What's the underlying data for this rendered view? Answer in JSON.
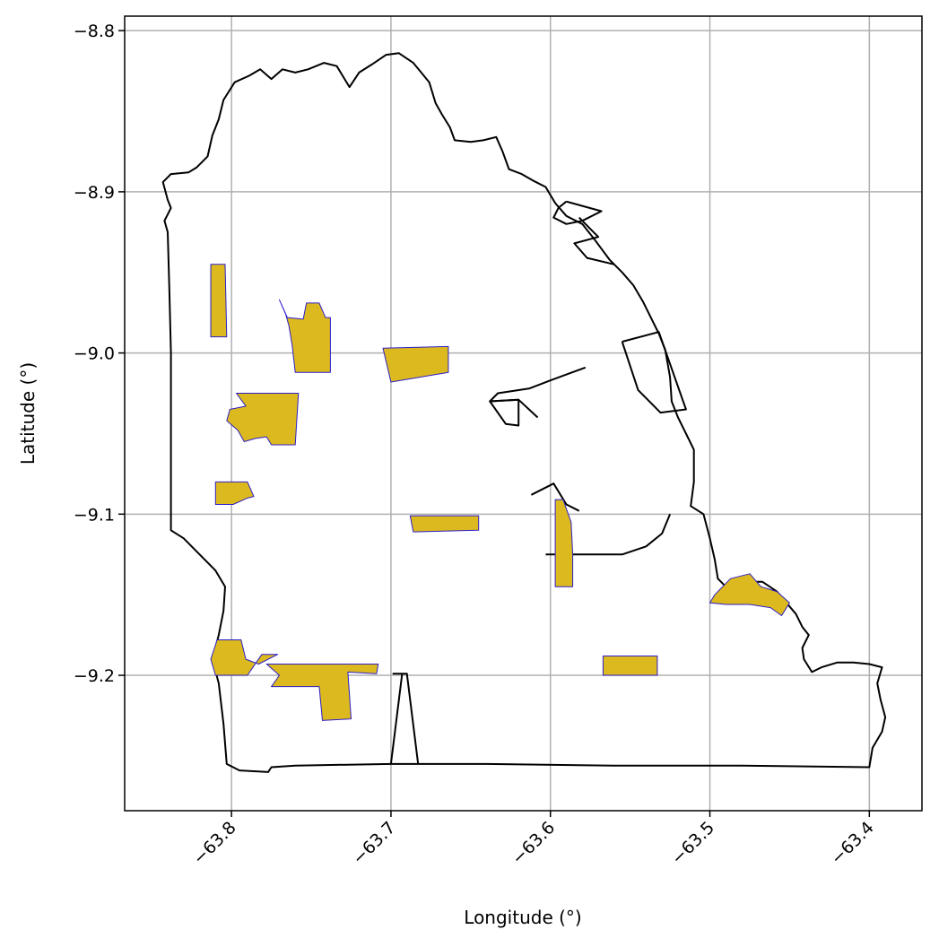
{
  "axes": {
    "xlabel": "Longitude (°)",
    "ylabel": "Latitude (°)",
    "xlim": [
      -63.867,
      -63.367
    ],
    "ylim": [
      -9.284,
      -8.791
    ],
    "x_ticks": [
      {
        "value": -63.8,
        "label": "−63.8"
      },
      {
        "value": -63.7,
        "label": "−63.7"
      },
      {
        "value": -63.6,
        "label": "−63.6"
      },
      {
        "value": -63.5,
        "label": "−63.5"
      },
      {
        "value": -63.4,
        "label": "−63.4"
      }
    ],
    "y_ticks": [
      {
        "value": -8.8,
        "label": "−8.8"
      },
      {
        "value": -8.9,
        "label": "−8.9"
      },
      {
        "value": -9.0,
        "label": "−9.0"
      },
      {
        "value": -9.1,
        "label": "−9.1"
      },
      {
        "value": -9.2,
        "label": "−9.2"
      }
    ],
    "grid": true
  },
  "colors": {
    "boundary": "#000000",
    "area_fill": "#ddb920",
    "area_edge": "#2b1fc8",
    "grid": "#b0b0b0"
  },
  "map_data": {
    "boundary_outline": [
      [
        -63.843,
        -8.894
      ],
      [
        -63.838,
        -8.889
      ],
      [
        -63.827,
        -8.888
      ],
      [
        -63.822,
        -8.885
      ],
      [
        -63.815,
        -8.878
      ],
      [
        -63.812,
        -8.865
      ],
      [
        -63.808,
        -8.855
      ],
      [
        -63.805,
        -8.843
      ],
      [
        -63.798,
        -8.832
      ],
      [
        -63.789,
        -8.828
      ],
      [
        -63.782,
        -8.824
      ],
      [
        -63.775,
        -8.83
      ],
      [
        -63.768,
        -8.824
      ],
      [
        -63.76,
        -8.826
      ],
      [
        -63.752,
        -8.824
      ],
      [
        -63.742,
        -8.82
      ],
      [
        -63.734,
        -8.822
      ],
      [
        -63.726,
        -8.835
      ],
      [
        -63.72,
        -8.826
      ],
      [
        -63.712,
        -8.821
      ],
      [
        -63.703,
        -8.815
      ],
      [
        -63.695,
        -8.814
      ],
      [
        -63.686,
        -8.82
      ],
      [
        -63.681,
        -8.826
      ],
      [
        -63.676,
        -8.832
      ],
      [
        -63.672,
        -8.845
      ],
      [
        -63.668,
        -8.852
      ],
      [
        -63.663,
        -8.86
      ],
      [
        -63.66,
        -8.868
      ],
      [
        -63.65,
        -8.869
      ],
      [
        -63.642,
        -8.868
      ],
      [
        -63.634,
        -8.866
      ],
      [
        -63.63,
        -8.875
      ],
      [
        -63.626,
        -8.886
      ],
      [
        -63.618,
        -8.889
      ],
      [
        -63.611,
        -8.893
      ],
      [
        -63.603,
        -8.897
      ],
      [
        -63.597,
        -8.907
      ],
      [
        -63.59,
        -8.915
      ],
      [
        -63.58,
        -8.92
      ],
      [
        -63.572,
        -8.93
      ],
      [
        -63.563,
        -8.942
      ],
      [
        -63.555,
        -8.95
      ],
      [
        -63.548,
        -8.958
      ],
      [
        -63.542,
        -8.968
      ],
      [
        -63.537,
        -8.978
      ],
      [
        -63.532,
        -8.988
      ],
      [
        -63.528,
        -8.998
      ],
      [
        -63.525,
        -9.015
      ],
      [
        -63.524,
        -9.03
      ],
      [
        -63.52,
        -9.04
      ],
      [
        -63.515,
        -9.05
      ],
      [
        -63.51,
        -9.06
      ],
      [
        -63.51,
        -9.08
      ],
      [
        -63.512,
        -9.095
      ],
      [
        -63.504,
        -9.1
      ],
      [
        -63.5,
        -9.115
      ],
      [
        -63.497,
        -9.128
      ],
      [
        -63.495,
        -9.14
      ],
      [
        -63.49,
        -9.145
      ],
      [
        -63.48,
        -9.142
      ],
      [
        -63.467,
        -9.142
      ],
      [
        -63.458,
        -9.148
      ],
      [
        -63.452,
        -9.155
      ],
      [
        -63.446,
        -9.162
      ],
      [
        -63.442,
        -9.17
      ],
      [
        -63.438,
        -9.175
      ],
      [
        -63.442,
        -9.183
      ],
      [
        -63.441,
        -9.19
      ],
      [
        -63.436,
        -9.198
      ],
      [
        -63.43,
        -9.195
      ],
      [
        -63.42,
        -9.192
      ],
      [
        -63.41,
        -9.192
      ],
      [
        -63.4,
        -9.193
      ],
      [
        -63.392,
        -9.195
      ],
      [
        -63.395,
        -9.205
      ],
      [
        -63.393,
        -9.215
      ],
      [
        -63.39,
        -9.226
      ],
      [
        -63.392,
        -9.235
      ],
      [
        -63.398,
        -9.245
      ],
      [
        -63.4,
        -9.257
      ],
      [
        -63.48,
        -9.256
      ],
      [
        -63.56,
        -9.256
      ],
      [
        -63.64,
        -9.255
      ],
      [
        -63.7,
        -9.255
      ],
      [
        -63.76,
        -9.256
      ],
      [
        -63.775,
        -9.257
      ],
      [
        -63.777,
        -9.26
      ],
      [
        -63.795,
        -9.259
      ],
      [
        -63.803,
        -9.255
      ],
      [
        -63.805,
        -9.23
      ],
      [
        -63.808,
        -9.205
      ],
      [
        -63.812,
        -9.19
      ],
      [
        -63.808,
        -9.175
      ],
      [
        -63.805,
        -9.16
      ],
      [
        -63.804,
        -9.145
      ],
      [
        -63.81,
        -9.135
      ],
      [
        -63.82,
        -9.125
      ],
      [
        -63.83,
        -9.115
      ],
      [
        -63.838,
        -9.11
      ],
      [
        -63.838,
        -9.095
      ],
      [
        -63.838,
        -9.075
      ],
      [
        -63.838,
        -9.04
      ],
      [
        -63.838,
        -9.0
      ],
      [
        -63.839,
        -8.96
      ],
      [
        -63.84,
        -8.925
      ],
      [
        -63.842,
        -8.918
      ],
      [
        -63.838,
        -8.91
      ],
      [
        -63.84,
        -8.905
      ],
      [
        -63.843,
        -8.894
      ]
    ],
    "inner_outlines": [
      [
        [
          -63.59,
          -8.906
        ],
        [
          -63.568,
          -8.912
        ],
        [
          -63.58,
          -8.918
        ],
        [
          -63.59,
          -8.92
        ],
        [
          -63.598,
          -8.916
        ],
        [
          -63.595,
          -8.91
        ],
        [
          -63.59,
          -8.906
        ]
      ],
      [
        [
          -63.582,
          -8.916
        ],
        [
          -63.57,
          -8.928
        ],
        [
          -63.585,
          -8.932
        ],
        [
          -63.577,
          -8.941
        ],
        [
          -63.56,
          -8.945
        ]
      ],
      [
        [
          -63.555,
          -8.993
        ],
        [
          -63.532,
          -8.987
        ],
        [
          -63.515,
          -9.035
        ],
        [
          -63.531,
          -9.037
        ],
        [
          -63.545,
          -9.023
        ],
        [
          -63.555,
          -8.993
        ]
      ],
      [
        [
          -63.578,
          -9.009
        ],
        [
          -63.6,
          -9.017
        ],
        [
          -63.613,
          -9.022
        ],
        [
          -63.633,
          -9.025
        ],
        [
          -63.638,
          -9.03
        ],
        [
          -63.62,
          -9.029
        ],
        [
          -63.608,
          -9.04
        ]
      ],
      [
        [
          -63.638,
          -9.03
        ],
        [
          -63.628,
          -9.044
        ],
        [
          -63.62,
          -9.045
        ],
        [
          -63.62,
          -9.029
        ],
        [
          -63.638,
          -9.03
        ]
      ],
      [
        [
          -63.612,
          -9.088
        ],
        [
          -63.598,
          -9.081
        ],
        [
          -63.59,
          -9.094
        ],
        [
          -63.582,
          -9.098
        ]
      ],
      [
        [
          -63.603,
          -9.125
        ],
        [
          -63.585,
          -9.125
        ],
        [
          -63.555,
          -9.125
        ],
        [
          -63.54,
          -9.12
        ],
        [
          -63.53,
          -9.112
        ],
        [
          -63.525,
          -9.1
        ]
      ],
      [
        [
          -63.699,
          -9.199
        ],
        [
          -63.69,
          -9.199
        ],
        [
          -63.683,
          -9.255
        ]
      ],
      [
        [
          -63.693,
          -9.199
        ],
        [
          -63.7,
          -9.255
        ]
      ]
    ],
    "highlighted_areas": [
      [
        [
          -63.813,
          -8.945
        ],
        [
          -63.804,
          -8.945
        ],
        [
          -63.803,
          -8.99
        ],
        [
          -63.813,
          -8.99
        ],
        [
          -63.813,
          -8.945
        ]
      ],
      [
        [
          -63.77,
          -8.967
        ],
        [
          -63.766,
          -8.976
        ],
        [
          -63.764,
          -8.983
        ],
        [
          -63.762,
          -8.995
        ],
        [
          -63.76,
          -9.012
        ],
        [
          -63.738,
          -9.012
        ],
        [
          -63.738,
          -8.978
        ],
        [
          -63.741,
          -8.978
        ],
        [
          -63.745,
          -8.969
        ],
        [
          -63.753,
          -8.969
        ],
        [
          -63.755,
          -8.979
        ],
        [
          -63.765,
          -8.978
        ],
        [
          -63.77,
          -8.967
        ]
      ],
      [
        [
          -63.705,
          -8.997
        ],
        [
          -63.664,
          -8.996
        ],
        [
          -63.664,
          -9.012
        ],
        [
          -63.7,
          -9.018
        ],
        [
          -63.705,
          -8.997
        ]
      ],
      [
        [
          -63.797,
          -9.025
        ],
        [
          -63.758,
          -9.025
        ],
        [
          -63.76,
          -9.057
        ],
        [
          -63.775,
          -9.057
        ],
        [
          -63.778,
          -9.052
        ],
        [
          -63.785,
          -9.053
        ],
        [
          -63.792,
          -9.055
        ],
        [
          -63.796,
          -9.048
        ],
        [
          -63.803,
          -9.042
        ],
        [
          -63.801,
          -9.035
        ],
        [
          -63.791,
          -9.033
        ],
        [
          -63.797,
          -9.025
        ]
      ],
      [
        [
          -63.81,
          -9.08
        ],
        [
          -63.79,
          -9.08
        ],
        [
          -63.786,
          -9.089
        ],
        [
          -63.79,
          -9.09
        ],
        [
          -63.799,
          -9.094
        ],
        [
          -63.81,
          -9.094
        ],
        [
          -63.81,
          -9.08
        ]
      ],
      [
        [
          -63.688,
          -9.101
        ],
        [
          -63.645,
          -9.101
        ],
        [
          -63.645,
          -9.11
        ],
        [
          -63.686,
          -9.111
        ],
        [
          -63.688,
          -9.101
        ]
      ],
      [
        [
          -63.597,
          -9.091
        ],
        [
          -63.592,
          -9.091
        ],
        [
          -63.587,
          -9.105
        ],
        [
          -63.586,
          -9.125
        ],
        [
          -63.586,
          -9.145
        ],
        [
          -63.597,
          -9.145
        ],
        [
          -63.597,
          -9.091
        ]
      ],
      [
        [
          -63.497,
          -9.15
        ],
        [
          -63.487,
          -9.14
        ],
        [
          -63.475,
          -9.137
        ],
        [
          -63.468,
          -9.145
        ],
        [
          -63.458,
          -9.148
        ],
        [
          -63.45,
          -9.155
        ],
        [
          -63.455,
          -9.163
        ],
        [
          -63.462,
          -9.158
        ],
        [
          -63.475,
          -9.156
        ],
        [
          -63.49,
          -9.156
        ],
        [
          -63.5,
          -9.155
        ],
        [
          -63.497,
          -9.15
        ]
      ],
      [
        [
          -63.567,
          -9.188
        ],
        [
          -63.533,
          -9.188
        ],
        [
          -63.533,
          -9.2
        ],
        [
          -63.567,
          -9.2
        ],
        [
          -63.567,
          -9.188
        ]
      ],
      [
        [
          -63.809,
          -9.178
        ],
        [
          -63.794,
          -9.178
        ],
        [
          -63.791,
          -9.19
        ],
        [
          -63.783,
          -9.193
        ],
        [
          -63.771,
          -9.187
        ],
        [
          -63.781,
          -9.187
        ],
        [
          -63.79,
          -9.2
        ],
        [
          -63.81,
          -9.2
        ],
        [
          -63.813,
          -9.19
        ],
        [
          -63.809,
          -9.178
        ]
      ],
      [
        [
          -63.778,
          -9.193
        ],
        [
          -63.77,
          -9.2
        ],
        [
          -63.775,
          -9.207
        ],
        [
          -63.745,
          -9.207
        ],
        [
          -63.743,
          -9.228
        ],
        [
          -63.725,
          -9.227
        ],
        [
          -63.727,
          -9.198
        ],
        [
          -63.709,
          -9.199
        ],
        [
          -63.708,
          -9.193
        ],
        [
          -63.75,
          -9.193
        ],
        [
          -63.778,
          -9.193
        ]
      ]
    ]
  }
}
